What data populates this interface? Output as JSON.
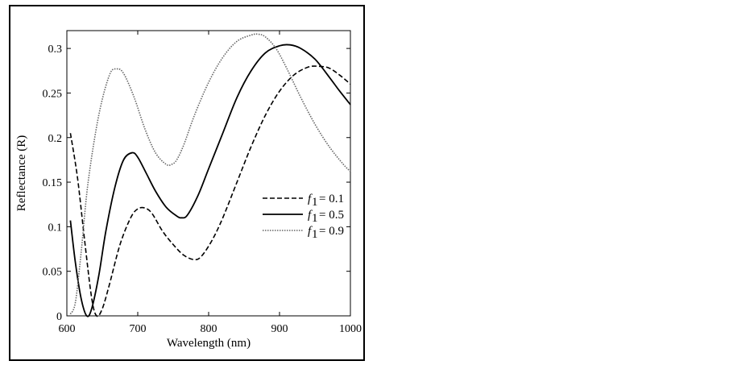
{
  "chart_data": {
    "type": "line",
    "title": "",
    "xlabel": "Wavelength (nm)",
    "ylabel": "Reflectance (R)",
    "xlim": [
      600,
      1000
    ],
    "ylim": [
      0,
      0.32
    ],
    "x_ticks": [
      600,
      700,
      800,
      900,
      1000
    ],
    "x_tick_labels": [
      "600",
      "700",
      "800",
      "900",
      "1000"
    ],
    "y_ticks": [
      0,
      0.05,
      0.1,
      0.15,
      0.2,
      0.25,
      0.3
    ],
    "y_tick_labels": [
      "0",
      "0.05",
      "0.1",
      "0.15",
      "0.2",
      "0.25",
      "0.3"
    ],
    "grid": false,
    "legend_position": "center-right",
    "series": [
      {
        "name": "f1 = 0.1",
        "legend_label": "= 0.1",
        "style": "dashed",
        "color": "#000000",
        "x": [
          605,
          615,
          625,
          635,
          642,
          650,
          660,
          675,
          690,
          700,
          710,
          720,
          735,
          750,
          765,
          780,
          790,
          805,
          820,
          840,
          860,
          880,
          900,
          920,
          940,
          955,
          970,
          985,
          1000
        ],
        "y": [
          0.205,
          0.155,
          0.085,
          0.02,
          0.0,
          0.008,
          0.035,
          0.08,
          0.11,
          0.12,
          0.121,
          0.115,
          0.095,
          0.08,
          0.068,
          0.063,
          0.067,
          0.085,
          0.11,
          0.15,
          0.19,
          0.225,
          0.252,
          0.27,
          0.279,
          0.28,
          0.278,
          0.27,
          0.26
        ]
      },
      {
        "name": "f1 = 0.5",
        "legend_label": "= 0.5",
        "style": "solid",
        "color": "#000000",
        "x": [
          605,
          612,
          620,
          628,
          635,
          645,
          655,
          668,
          680,
          692,
          700,
          712,
          725,
          740,
          755,
          762,
          770,
          785,
          800,
          820,
          840,
          860,
          880,
          900,
          915,
          930,
          950,
          970,
          985,
          1000
        ],
        "y": [
          0.107,
          0.06,
          0.02,
          0.0,
          0.008,
          0.045,
          0.095,
          0.145,
          0.175,
          0.183,
          0.178,
          0.16,
          0.14,
          0.122,
          0.112,
          0.11,
          0.113,
          0.135,
          0.165,
          0.205,
          0.245,
          0.275,
          0.295,
          0.303,
          0.304,
          0.3,
          0.288,
          0.268,
          0.252,
          0.237
        ]
      },
      {
        "name": "f1 = 0.9",
        "legend_label": "= 0.9",
        "style": "dotted",
        "color": "#666666",
        "x": [
          605,
          612,
          620,
          630,
          645,
          660,
          670,
          680,
          695,
          710,
          725,
          740,
          748,
          755,
          765,
          780,
          800,
          820,
          840,
          860,
          870,
          880,
          895,
          910,
          930,
          950,
          970,
          990,
          1000
        ],
        "y": [
          0.002,
          0.015,
          0.07,
          0.15,
          0.225,
          0.27,
          0.277,
          0.272,
          0.245,
          0.21,
          0.183,
          0.17,
          0.17,
          0.175,
          0.192,
          0.225,
          0.262,
          0.29,
          0.308,
          0.315,
          0.316,
          0.313,
          0.3,
          0.278,
          0.245,
          0.215,
          0.19,
          0.17,
          0.162
        ]
      }
    ]
  }
}
